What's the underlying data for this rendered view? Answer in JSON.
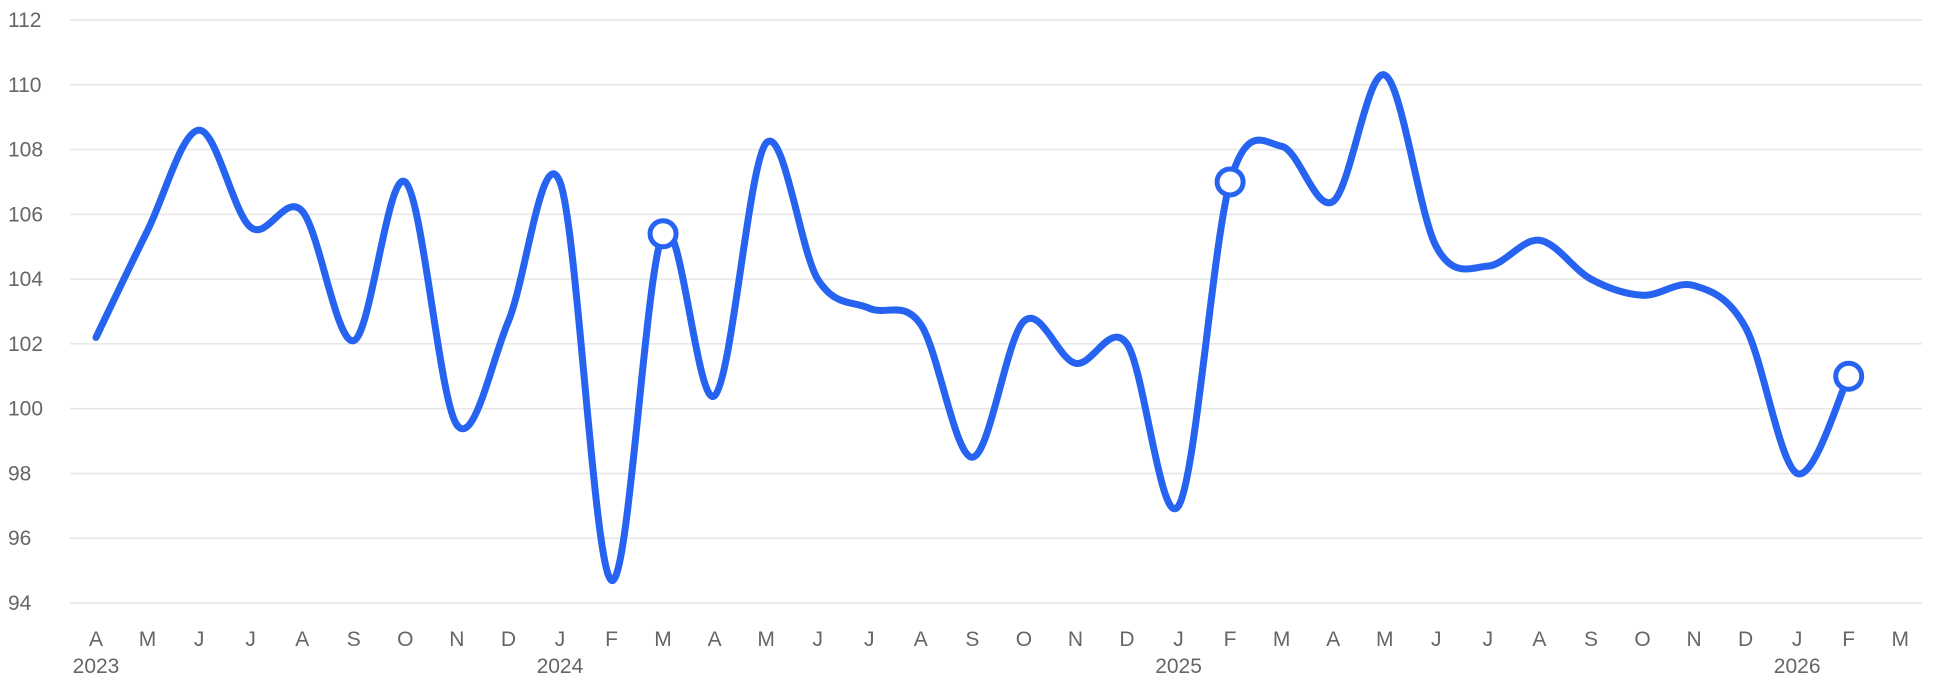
{
  "chart_data": {
    "type": "line",
    "title": "",
    "xlabel": "",
    "ylabel": "",
    "ylim": [
      94,
      112
    ],
    "yticks": [
      94,
      96,
      98,
      100,
      102,
      104,
      106,
      108,
      110,
      112
    ],
    "grid": true,
    "x": [
      "2023-04",
      "2023-05",
      "2023-06",
      "2023-07",
      "2023-08",
      "2023-09",
      "2023-10",
      "2023-11",
      "2023-12",
      "2024-01",
      "2024-02",
      "2024-03",
      "2024-04",
      "2024-05",
      "2024-06",
      "2024-07",
      "2024-08",
      "2024-09",
      "2024-10",
      "2024-11",
      "2024-12",
      "2025-01",
      "2025-02",
      "2025-03",
      "2025-04",
      "2025-05",
      "2025-06",
      "2025-07",
      "2025-08",
      "2025-09",
      "2025-10",
      "2025-11",
      "2025-12",
      "2026-01",
      "2026-02",
      "2026-03"
    ],
    "x_tick_labels": [
      "A",
      "M",
      "J",
      "J",
      "A",
      "S",
      "O",
      "N",
      "D",
      "J",
      "F",
      "M",
      "A",
      "M",
      "J",
      "J",
      "A",
      "S",
      "O",
      "N",
      "D",
      "J",
      "F",
      "M",
      "A",
      "M",
      "J",
      "J",
      "A",
      "S",
      "O",
      "N",
      "D",
      "J",
      "F",
      "M"
    ],
    "year_labels": [
      {
        "at": "2023-04",
        "text": "2023"
      },
      {
        "at": "2024-01",
        "text": "2024"
      },
      {
        "at": "2025-01",
        "text": "2025"
      },
      {
        "at": "2026-01",
        "text": "2026"
      }
    ],
    "series": [
      {
        "color": "#2563f0",
        "values": [
          102.2,
          105.5,
          108.6,
          105.6,
          106.1,
          102.1,
          107.0,
          99.5,
          102.7,
          107.0,
          94.7,
          105.4,
          100.4,
          108.2,
          104.0,
          103.1,
          102.6,
          98.5,
          102.7,
          101.4,
          102.0,
          97.0,
          107.0,
          108.1,
          106.4,
          110.3,
          105.0,
          104.4,
          105.2,
          104.0,
          103.5,
          103.8,
          102.5,
          98.0,
          101.0,
          null
        ],
        "markers": [
          "2024-03",
          "2025-02",
          "2026-02"
        ]
      }
    ]
  }
}
